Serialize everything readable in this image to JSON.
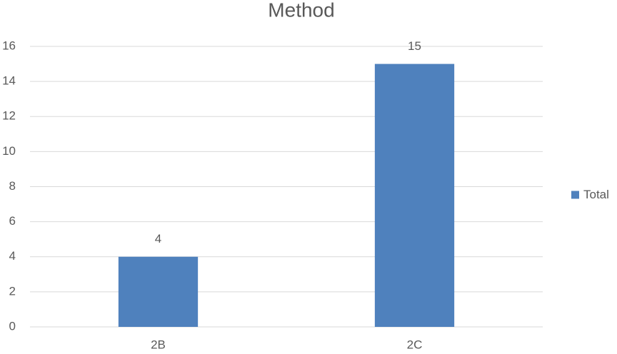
{
  "chart_data": {
    "type": "bar",
    "title": "Method",
    "categories": [
      "2B",
      "2C"
    ],
    "series": [
      {
        "name": "Total",
        "color": "#4f81bd",
        "values": [
          4,
          15
        ]
      }
    ],
    "ylim": [
      0,
      16
    ],
    "yticks": [
      0,
      2,
      4,
      6,
      8,
      10,
      12,
      14,
      16
    ],
    "grid": true,
    "legend": "right"
  }
}
